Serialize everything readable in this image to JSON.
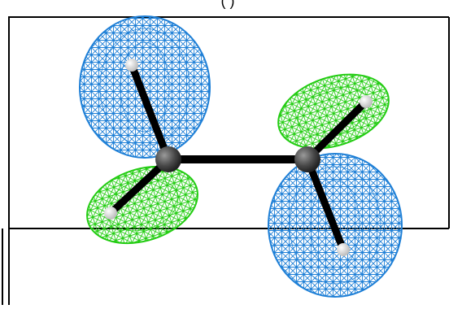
{
  "caption": "(    )",
  "molecule": {
    "atoms": [
      {
        "name": "carbon-left",
        "element": "C",
        "color": "#4a4a4a"
      },
      {
        "name": "carbon-right",
        "element": "C",
        "color": "#4a4a4a"
      },
      {
        "name": "hydrogen-upper-left",
        "element": "H",
        "color": "#e8e8e8"
      },
      {
        "name": "hydrogen-lower-left",
        "element": "H",
        "color": "#e8e8e8"
      },
      {
        "name": "hydrogen-upper-right",
        "element": "H",
        "color": "#e8e8e8"
      },
      {
        "name": "hydrogen-lower-right",
        "element": "H",
        "color": "#e8e8e8"
      }
    ],
    "bond_color": "#000000"
  },
  "orbital": {
    "positive_lobe_color": "#1e7fd6",
    "negative_lobe_color": "#22cc11",
    "render_style": "wireframe mesh"
  },
  "frame_color": "#000000"
}
